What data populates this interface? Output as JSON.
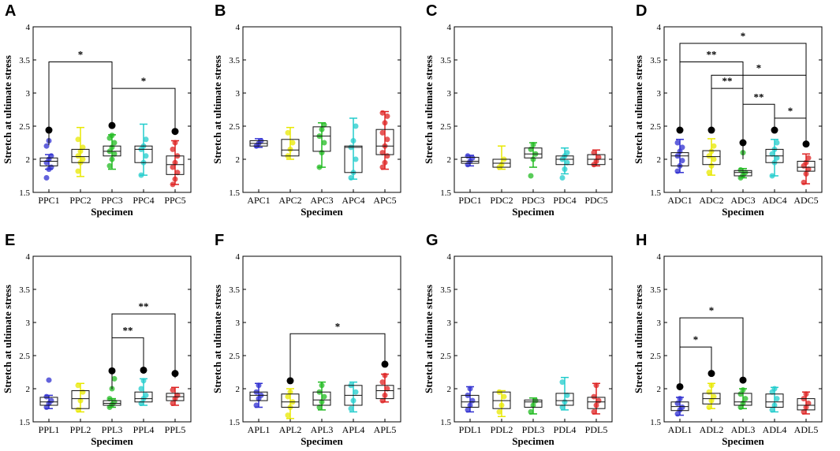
{
  "chart_data": [
    {
      "type": "box",
      "panel": "A",
      "xlabel": "Specimen",
      "ylabel": "Stretch at ultimate stress",
      "ylim": [
        1.5,
        4
      ],
      "yticks": [
        "1.5",
        "2",
        "2.5",
        "3",
        "3.5",
        "4"
      ],
      "categories": [
        "PPC1",
        "PPC2",
        "PPC3",
        "PPC4",
        "PPC5"
      ],
      "colors": [
        "#2f2fd0",
        "#e8e800",
        "#22bb22",
        "#22cccc",
        "#dd2222"
      ],
      "boxes": [
        {
          "min": 1.85,
          "q1": 1.9,
          "median": 1.97,
          "q3": 2.02,
          "max": 2.07,
          "points": [
            1.72,
            1.85,
            1.88,
            1.95,
            2.0,
            2.05,
            2.2,
            2.28
          ],
          "outlier_dot": 2.44
        },
        {
          "min": 1.74,
          "q1": 1.95,
          "median": 2.04,
          "q3": 2.15,
          "max": 2.48,
          "points": [
            1.82,
            1.95,
            2.0,
            2.05,
            2.12,
            2.18,
            2.3
          ]
        },
        {
          "min": 1.85,
          "q1": 2.05,
          "median": 2.12,
          "q3": 2.2,
          "max": 2.37,
          "points": [
            1.9,
            2.0,
            2.08,
            2.12,
            2.18,
            2.25,
            2.32,
            2.36
          ],
          "outlier_dot": 2.51
        },
        {
          "min": 1.76,
          "q1": 1.95,
          "median": 2.15,
          "q3": 2.2,
          "max": 2.53,
          "points": [
            1.76,
            1.95,
            2.05,
            2.15,
            2.2,
            2.3
          ]
        },
        {
          "min": 1.62,
          "q1": 1.77,
          "median": 1.92,
          "q3": 2.05,
          "max": 2.28,
          "points": [
            1.62,
            1.7,
            1.8,
            1.88,
            1.95,
            2.05,
            2.15,
            2.25
          ],
          "outlier_dot": 2.42
        }
      ],
      "significance": [
        {
          "from": 0,
          "to": 2,
          "level": 3.47,
          "label": "*"
        },
        {
          "from": 2,
          "to": 4,
          "level": 3.07,
          "label": "*"
        }
      ]
    },
    {
      "type": "box",
      "panel": "B",
      "xlabel": "Specimen",
      "ylabel": "Stretch at ultimate stress",
      "ylim": [
        1.5,
        4
      ],
      "yticks": [
        "1.5",
        "2",
        "2.5",
        "3",
        "3.5",
        "4"
      ],
      "categories": [
        "APC1",
        "APC2",
        "APC3",
        "APC4",
        "APC5"
      ],
      "colors": [
        "#2f2fd0",
        "#e8e800",
        "#22bb22",
        "#22cccc",
        "#dd2222"
      ],
      "boxes": [
        {
          "min": 2.18,
          "q1": 2.2,
          "median": 2.24,
          "q3": 2.28,
          "max": 2.31,
          "points": [
            2.2,
            2.24,
            2.28
          ]
        },
        {
          "min": 2.0,
          "q1": 2.05,
          "median": 2.14,
          "q3": 2.3,
          "max": 2.48,
          "points": [
            2.05,
            2.15,
            2.25,
            2.4
          ]
        },
        {
          "min": 1.88,
          "q1": 2.12,
          "median": 2.35,
          "q3": 2.49,
          "max": 2.55,
          "points": [
            1.88,
            2.1,
            2.25,
            2.35,
            2.45,
            2.52
          ]
        },
        {
          "min": 1.7,
          "q1": 1.8,
          "median": 2.18,
          "q3": 2.2,
          "max": 2.62,
          "points": [
            1.72,
            1.8,
            2.0,
            2.18,
            2.28,
            2.5
          ]
        },
        {
          "min": 1.85,
          "q1": 2.07,
          "median": 2.2,
          "q3": 2.45,
          "max": 2.72,
          "points": [
            1.88,
            1.95,
            2.05,
            2.1,
            2.2,
            2.3,
            2.4,
            2.55,
            2.65,
            2.7
          ]
        }
      ],
      "significance": []
    },
    {
      "type": "box",
      "panel": "C",
      "xlabel": "Specimen",
      "ylabel": "Stretch at ultimate stress",
      "ylim": [
        1.5,
        4
      ],
      "yticks": [
        "1.5",
        "2",
        "2.5",
        "3",
        "3.5",
        "4"
      ],
      "categories": [
        "PDC1",
        "PDC2",
        "PDC3",
        "PDC4",
        "PDC5"
      ],
      "colors": [
        "#2f2fd0",
        "#e8e800",
        "#22bb22",
        "#22cccc",
        "#dd2222"
      ],
      "boxes": [
        {
          "min": 1.9,
          "q1": 1.94,
          "median": 1.97,
          "q3": 2.03,
          "max": 2.06,
          "points": [
            1.92,
            1.97,
            2.02,
            2.05
          ]
        },
        {
          "min": 1.85,
          "q1": 1.88,
          "median": 1.94,
          "q3": 2.0,
          "max": 2.2,
          "points": [
            1.88,
            1.92,
            2.0
          ]
        },
        {
          "min": 1.88,
          "q1": 2.02,
          "median": 2.08,
          "q3": 2.17,
          "max": 2.25,
          "points": [
            1.75,
            2.0,
            2.08,
            2.15,
            2.22
          ]
        },
        {
          "min": 1.78,
          "q1": 1.92,
          "median": 2.0,
          "q3": 2.05,
          "max": 2.17,
          "points": [
            1.72,
            1.85,
            1.95,
            2.0,
            2.05,
            2.1
          ]
        },
        {
          "min": 1.9,
          "q1": 1.92,
          "median": 2.0,
          "q3": 2.07,
          "max": 2.14,
          "points": [
            1.92,
            1.97,
            2.03,
            2.1
          ]
        }
      ],
      "significance": []
    },
    {
      "type": "box",
      "panel": "D",
      "xlabel": "Specimen",
      "ylabel": "Stretch at ultimate stress",
      "ylim": [
        1.5,
        4
      ],
      "yticks": [
        "1.5",
        "2",
        "2.5",
        "3",
        "3.5",
        "4"
      ],
      "categories": [
        "ADC1",
        "ADC2",
        "ADC3",
        "ADC4",
        "ADC5"
      ],
      "colors": [
        "#2f2fd0",
        "#e8e800",
        "#22bb22",
        "#22cccc",
        "#dd2222"
      ],
      "boxes": [
        {
          "min": 1.8,
          "q1": 1.9,
          "median": 2.05,
          "q3": 2.1,
          "max": 2.3,
          "points": [
            1.82,
            1.9,
            1.98,
            2.05,
            2.12,
            2.18,
            2.25
          ],
          "outlier_dot": 2.44
        },
        {
          "min": 1.76,
          "q1": 1.92,
          "median": 2.04,
          "q3": 2.13,
          "max": 2.31,
          "points": [
            1.8,
            1.9,
            2.0,
            2.05,
            2.12,
            2.2
          ],
          "outlier_dot": 2.44
        },
        {
          "min": 1.72,
          "q1": 1.75,
          "median": 1.8,
          "q3": 1.83,
          "max": 1.86,
          "points": [
            1.72,
            1.76,
            1.8,
            1.84,
            2.1
          ],
          "outlier_dot": 2.25
        },
        {
          "min": 1.75,
          "q1": 1.95,
          "median": 2.05,
          "q3": 2.15,
          "max": 2.3,
          "points": [
            1.75,
            1.95,
            2.02,
            2.08,
            2.15,
            2.25
          ],
          "outlier_dot": 2.44
        },
        {
          "min": 1.63,
          "q1": 1.82,
          "median": 1.88,
          "q3": 1.97,
          "max": 2.08,
          "points": [
            1.65,
            1.78,
            1.85,
            1.9,
            1.95,
            2.02
          ],
          "outlier_dot": 2.23
        }
      ],
      "significance": [
        {
          "from": 0,
          "to": 4,
          "level": 3.75,
          "label": "*"
        },
        {
          "from": 0,
          "to": 2,
          "level": 3.47,
          "label": "**"
        },
        {
          "from": 1,
          "to": 4,
          "level": 3.27,
          "label": "*"
        },
        {
          "from": 1,
          "to": 2,
          "level": 3.07,
          "label": "**"
        },
        {
          "from": 2,
          "to": 3,
          "level": 2.83,
          "label": "**"
        },
        {
          "from": 3,
          "to": 4,
          "level": 2.62,
          "label": "*"
        }
      ]
    },
    {
      "type": "box",
      "panel": "E",
      "xlabel": "Specimen",
      "ylabel": "Stretch at ultimate stress",
      "ylim": [
        1.5,
        4
      ],
      "yticks": [
        "1.5",
        "2",
        "2.5",
        "3",
        "3.5",
        "4"
      ],
      "categories": [
        "PPL1",
        "PPL2",
        "PPL3",
        "PPL4",
        "PPL5"
      ],
      "colors": [
        "#2f2fd0",
        "#e8e800",
        "#22bb22",
        "#22cccc",
        "#dd2222"
      ],
      "boxes": [
        {
          "min": 1.7,
          "q1": 1.75,
          "median": 1.8,
          "q3": 1.87,
          "max": 1.9,
          "points": [
            1.72,
            1.78,
            1.82,
            1.88,
            2.13
          ]
        },
        {
          "min": 1.65,
          "q1": 1.7,
          "median": 1.85,
          "q3": 1.97,
          "max": 2.08,
          "points": [
            1.68,
            1.82,
            1.95,
            2.05
          ]
        },
        {
          "min": 1.72,
          "q1": 1.75,
          "median": 1.78,
          "q3": 1.82,
          "max": 1.85,
          "points": [
            1.72,
            1.76,
            1.8,
            1.85,
            2.0,
            2.15
          ],
          "outlier_dot": 2.27
        },
        {
          "min": 1.75,
          "q1": 1.8,
          "median": 1.85,
          "q3": 1.95,
          "max": 2.15,
          "points": [
            1.78,
            1.85,
            1.9,
            2.0,
            2.12
          ],
          "outlier_dot": 2.28
        },
        {
          "min": 1.75,
          "q1": 1.82,
          "median": 1.88,
          "q3": 1.93,
          "max": 2.02,
          "points": [
            1.78,
            1.85,
            1.9,
            1.98
          ],
          "outlier_dot": 2.23
        }
      ],
      "significance": [
        {
          "from": 2,
          "to": 4,
          "level": 3.13,
          "label": "**"
        },
        {
          "from": 2,
          "to": 3,
          "level": 2.77,
          "label": "**"
        }
      ]
    },
    {
      "type": "box",
      "panel": "F",
      "xlabel": "Specimen",
      "ylabel": "Stretch at ultimate stress",
      "ylim": [
        1.5,
        4
      ],
      "yticks": [
        "1.5",
        "2",
        "2.5",
        "3",
        "3.5",
        "4"
      ],
      "categories": [
        "APL1",
        "APL2",
        "APL3",
        "APL4",
        "APL5"
      ],
      "colors": [
        "#2f2fd0",
        "#e8e800",
        "#22bb22",
        "#22cccc",
        "#dd2222"
      ],
      "boxes": [
        {
          "min": 1.72,
          "q1": 1.82,
          "median": 1.9,
          "q3": 1.95,
          "max": 2.08,
          "points": [
            1.75,
            1.85,
            1.9,
            1.95,
            2.05
          ]
        },
        {
          "min": 1.55,
          "q1": 1.72,
          "median": 1.8,
          "q3": 1.92,
          "max": 2.0,
          "points": [
            1.6,
            1.72,
            1.8,
            1.88,
            1.95
          ],
          "outlier_dot": 2.12
        },
        {
          "min": 1.68,
          "q1": 1.75,
          "median": 1.83,
          "q3": 1.95,
          "max": 2.1,
          "points": [
            1.72,
            1.8,
            1.88,
            1.95,
            2.05
          ]
        },
        {
          "min": 1.65,
          "q1": 1.75,
          "median": 1.9,
          "q3": 2.05,
          "max": 2.1,
          "points": [
            1.7,
            1.82,
            1.95,
            2.05
          ]
        },
        {
          "min": 1.8,
          "q1": 1.85,
          "median": 1.97,
          "q3": 2.05,
          "max": 2.22,
          "points": [
            1.82,
            1.9,
            2.0,
            2.1,
            2.2
          ],
          "outlier_dot": 2.37
        }
      ],
      "significance": [
        {
          "from": 1,
          "to": 4,
          "level": 2.83,
          "label": "*"
        }
      ]
    },
    {
      "type": "box",
      "panel": "G",
      "xlabel": "Specimen",
      "ylabel": "Stretch at ultimate stress",
      "ylim": [
        1.5,
        4
      ],
      "yticks": [
        "1.5",
        "2",
        "2.5",
        "3",
        "3.5",
        "4"
      ],
      "categories": [
        "PDL1",
        "PDL2",
        "PDL3",
        "PDL4",
        "PDL5"
      ],
      "colors": [
        "#2f2fd0",
        "#e8e800",
        "#22bb22",
        "#22cccc",
        "#dd2222"
      ],
      "boxes": [
        {
          "min": 1.65,
          "q1": 1.72,
          "median": 1.8,
          "q3": 1.9,
          "max": 2.03,
          "points": [
            1.68,
            1.75,
            1.82,
            1.9,
            2.0
          ]
        },
        {
          "min": 1.58,
          "q1": 1.7,
          "median": 1.82,
          "q3": 1.95,
          "max": 1.97,
          "points": [
            1.65,
            1.75,
            1.88,
            1.95
          ]
        },
        {
          "min": 1.62,
          "q1": 1.72,
          "median": 1.8,
          "q3": 1.83,
          "max": 1.86,
          "points": [
            1.65,
            1.75,
            1.82
          ]
        },
        {
          "min": 1.68,
          "q1": 1.75,
          "median": 1.82,
          "q3": 1.93,
          "max": 2.17,
          "points": [
            1.72,
            1.8,
            1.9,
            2.1
          ]
        },
        {
          "min": 1.62,
          "q1": 1.7,
          "median": 1.8,
          "q3": 1.87,
          "max": 2.08,
          "points": [
            1.65,
            1.75,
            1.82,
            1.88,
            2.05
          ]
        }
      ],
      "significance": []
    },
    {
      "type": "box",
      "panel": "H",
      "xlabel": "Specimen",
      "ylabel": "Stretch at ultimate stress",
      "ylim": [
        1.5,
        4
      ],
      "yticks": [
        "1.5",
        "2",
        "2.5",
        "3",
        "3.5",
        "4"
      ],
      "categories": [
        "ADL1",
        "ADL2",
        "ADL3",
        "ADL4",
        "ADL5"
      ],
      "colors": [
        "#2f2fd0",
        "#e8e800",
        "#22bb22",
        "#22cccc",
        "#dd2222"
      ],
      "boxes": [
        {
          "min": 1.6,
          "q1": 1.67,
          "median": 1.73,
          "q3": 1.8,
          "max": 1.87,
          "points": [
            1.62,
            1.68,
            1.72,
            1.78,
            1.85
          ],
          "outlier_dot": 2.03
        },
        {
          "min": 1.7,
          "q1": 1.77,
          "median": 1.85,
          "q3": 1.93,
          "max": 2.08,
          "points": [
            1.72,
            1.82,
            1.88,
            1.95,
            2.05
          ],
          "outlier_dot": 2.23
        },
        {
          "min": 1.7,
          "q1": 1.75,
          "median": 1.8,
          "q3": 1.93,
          "max": 2.0,
          "points": [
            1.72,
            1.78,
            1.85,
            1.92,
            1.98
          ],
          "outlier_dot": 2.13
        },
        {
          "min": 1.65,
          "q1": 1.72,
          "median": 1.8,
          "q3": 1.92,
          "max": 2.02,
          "points": [
            1.68,
            1.75,
            1.85,
            1.95,
            2.0
          ]
        },
        {
          "min": 1.62,
          "q1": 1.68,
          "median": 1.75,
          "q3": 1.85,
          "max": 1.95,
          "points": [
            1.65,
            1.72,
            1.78,
            1.85,
            1.92
          ]
        }
      ],
      "significance": [
        {
          "from": 0,
          "to": 2,
          "level": 3.07,
          "label": "*"
        },
        {
          "from": 0,
          "to": 1,
          "level": 2.63,
          "label": "*"
        }
      ]
    }
  ]
}
